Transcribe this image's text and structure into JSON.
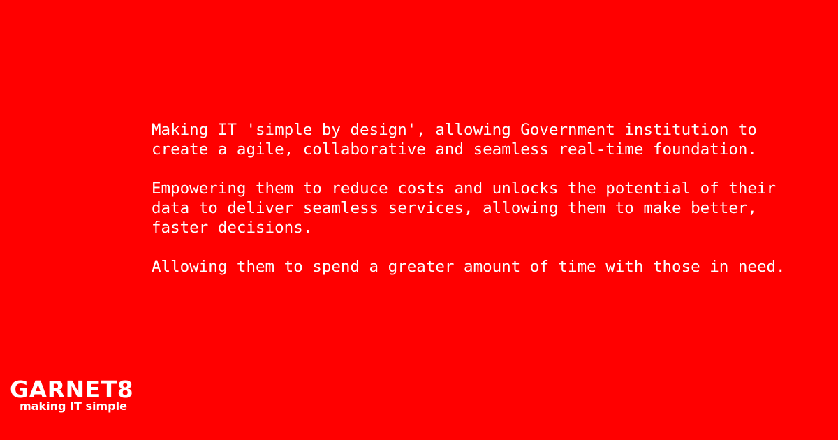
{
  "paragraphs": [
    "Making IT 'simple by design', allowing Government institution to\ncreate a agile, collaborative and seamless real-time foundation.",
    "Empowering them to reduce costs and unlocks the potential of their\ndata to deliver seamless services, allowing them to make better,\nfaster decisions.",
    "Allowing them to spend a greater amount of time with those in need."
  ],
  "logo": {
    "name": "GARNET8",
    "tagline": "making IT simple"
  },
  "colors": {
    "background": "#ff0000",
    "text": "#ffffff"
  }
}
